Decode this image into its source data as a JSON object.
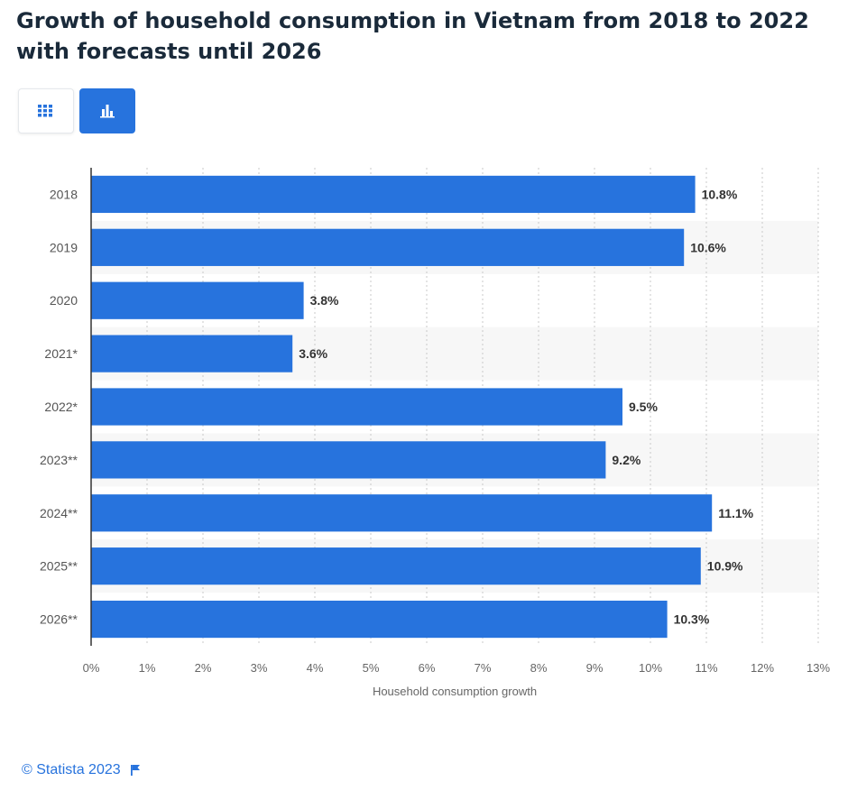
{
  "header": {
    "title": "Growth of household consumption in Vietnam from 2018 to 2022 with forecasts until 2026"
  },
  "view_toggle": {
    "table_icon": "grid-icon",
    "chart_icon": "bar-chart-icon"
  },
  "footer": {
    "copyright": "© Statista 2023",
    "flag_icon": "flag-icon"
  },
  "colors": {
    "bar": "#2773dd",
    "accent": "#2773dd",
    "band": "#f7f7f7"
  },
  "chart_data": {
    "type": "bar",
    "orientation": "horizontal",
    "categories": [
      "2018",
      "2019",
      "2020",
      "2021*",
      "2022*",
      "2023**",
      "2024**",
      "2025**",
      "2026**"
    ],
    "values": [
      10.8,
      10.6,
      3.8,
      3.6,
      9.5,
      9.2,
      11.1,
      10.9,
      10.3
    ],
    "value_labels": [
      "10.8%",
      "10.6%",
      "3.8%",
      "3.6%",
      "9.5%",
      "9.2%",
      "11.1%",
      "10.9%",
      "10.3%"
    ],
    "xlabel": "Household consumption growth",
    "ylabel": "",
    "xlim": [
      0,
      13
    ],
    "x_ticks": [
      "0%",
      "1%",
      "2%",
      "3%",
      "4%",
      "5%",
      "6%",
      "7%",
      "8%",
      "9%",
      "10%",
      "11%",
      "12%",
      "13%"
    ],
    "grid": true
  }
}
